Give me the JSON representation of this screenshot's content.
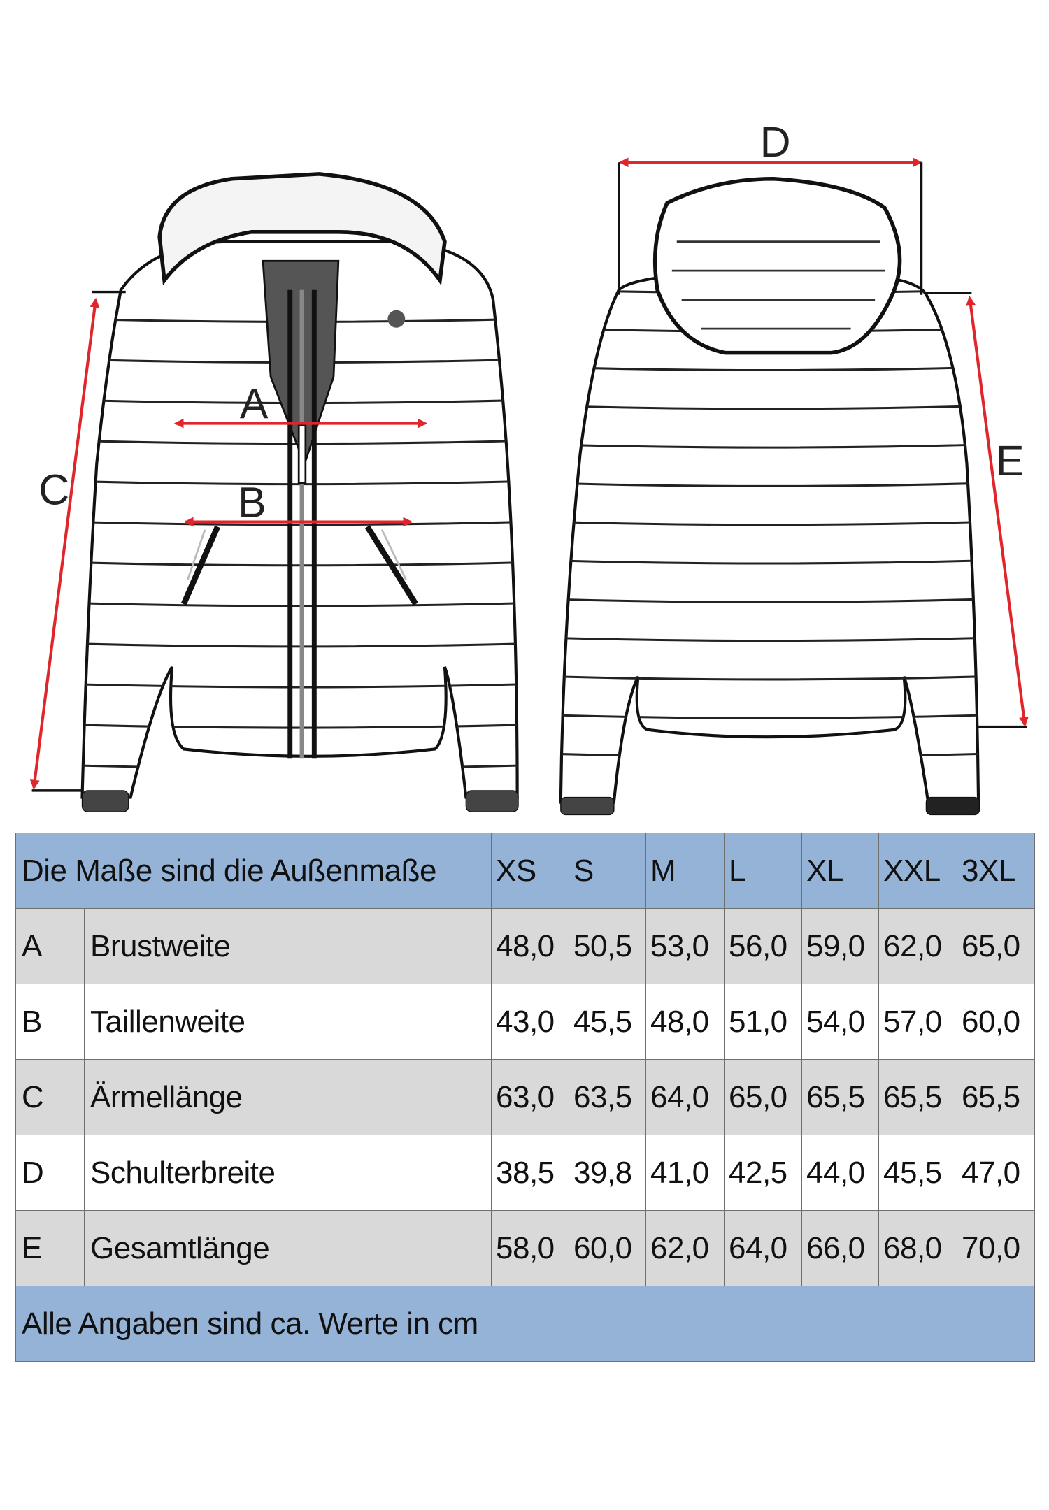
{
  "diagram": {
    "labels": {
      "A": "A",
      "B": "B",
      "C": "C",
      "D": "D",
      "E": "E"
    },
    "arrow_color": "#e0262a",
    "line_color": "#111111"
  },
  "table": {
    "header_label": "Die Maße sind die Außenmaße",
    "sizes": [
      "XS",
      "S",
      "M",
      "L",
      "XL",
      "XXL",
      "3XL"
    ],
    "rows": [
      {
        "key": "A",
        "name": "Brustweite",
        "values": [
          "48,0",
          "50,5",
          "53,0",
          "56,0",
          "59,0",
          "62,0",
          "65,0"
        ]
      },
      {
        "key": "B",
        "name": "Taillenweite",
        "values": [
          "43,0",
          "45,5",
          "48,0",
          "51,0",
          "54,0",
          "57,0",
          "60,0"
        ]
      },
      {
        "key": "C",
        "name": "Ärmellänge",
        "values": [
          "63,0",
          "63,5",
          "64,0",
          "65,0",
          "65,5",
          "65,5",
          "65,5"
        ]
      },
      {
        "key": "D",
        "name": "Schulterbreite",
        "values": [
          "38,5",
          "39,8",
          "41,0",
          "42,5",
          "44,0",
          "45,5",
          "47,0"
        ]
      },
      {
        "key": "E",
        "name": "Gesamtlänge",
        "values": [
          "58,0",
          "60,0",
          "62,0",
          "64,0",
          "66,0",
          "68,0",
          "70,0"
        ]
      }
    ],
    "footer": "Alle Angaben sind ca. Werte in cm",
    "colors": {
      "header": "#95b3d7",
      "gray_row": "#d9d9d9",
      "white_row": "#ffffff",
      "border": "#6f6f6f"
    }
  }
}
